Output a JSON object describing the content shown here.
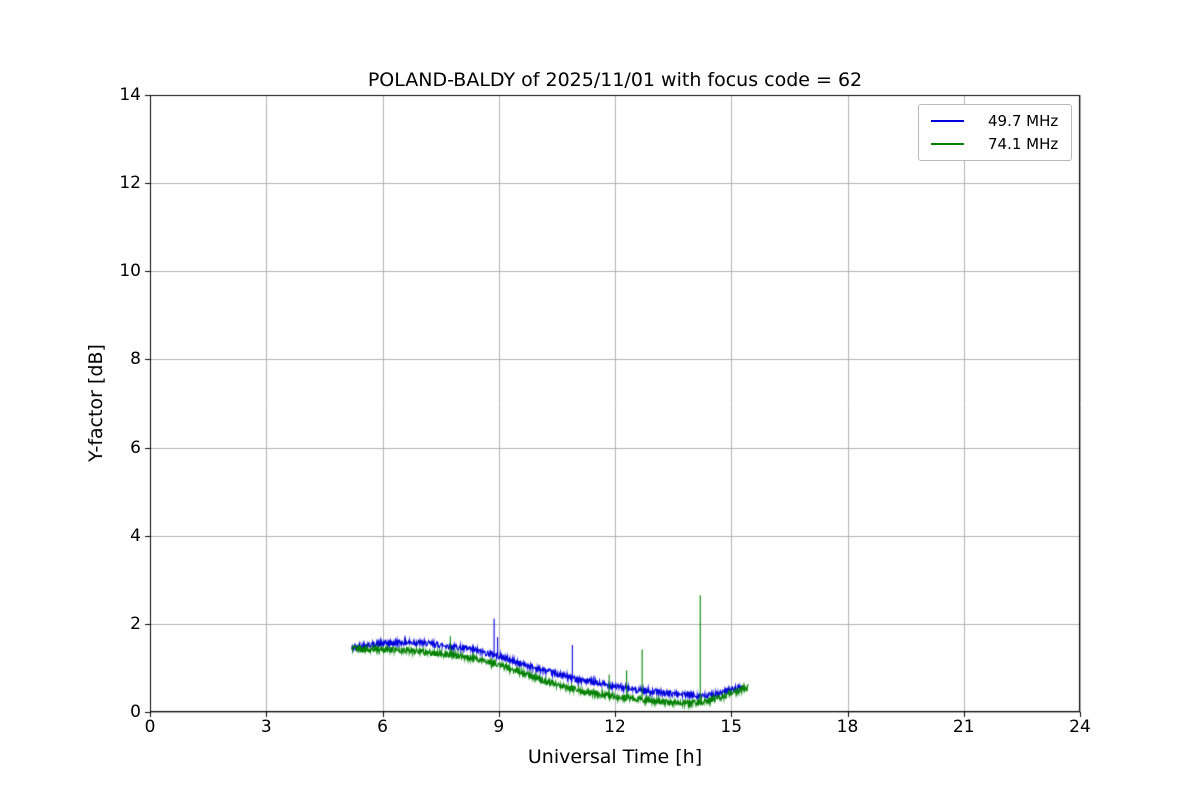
{
  "figure": {
    "background": "#ffffff"
  },
  "chart_data": {
    "type": "line",
    "title": "POLAND-BALDY of 2025/11/01 with focus code = 62",
    "xlabel": "Universal Time [h]",
    "ylabel": "Y-factor [dB]",
    "xlim": [
      0,
      24
    ],
    "ylim": [
      0,
      14
    ],
    "xticks": [
      0,
      3,
      6,
      9,
      12,
      15,
      18,
      21,
      24
    ],
    "yticks": [
      0,
      2,
      4,
      6,
      8,
      10,
      12,
      14
    ],
    "grid": true,
    "grid_color": "#b0b0b0",
    "legend_position": "upper right",
    "series": [
      {
        "name": "49.7 MHz",
        "color": "#0000dd",
        "noise": 0.07,
        "anchors": [
          [
            5.2,
            1.45
          ],
          [
            5.6,
            1.52
          ],
          [
            6.0,
            1.55
          ],
          [
            6.5,
            1.58
          ],
          [
            7.0,
            1.57
          ],
          [
            7.5,
            1.52
          ],
          [
            8.0,
            1.46
          ],
          [
            8.5,
            1.38
          ],
          [
            9.0,
            1.27
          ],
          [
            9.5,
            1.12
          ],
          [
            10.0,
            0.98
          ],
          [
            10.5,
            0.86
          ],
          [
            11.0,
            0.75
          ],
          [
            11.5,
            0.66
          ],
          [
            12.0,
            0.58
          ],
          [
            12.5,
            0.51
          ],
          [
            13.0,
            0.46
          ],
          [
            13.5,
            0.42
          ],
          [
            14.0,
            0.38
          ],
          [
            14.35,
            0.36
          ],
          [
            14.7,
            0.42
          ],
          [
            15.0,
            0.5
          ],
          [
            15.3,
            0.58
          ]
        ],
        "spikes": [
          [
            8.88,
            2.12
          ],
          [
            8.97,
            1.7
          ],
          [
            10.9,
            1.52
          ]
        ]
      },
      {
        "name": "74.1 MHz",
        "color": "#008000",
        "noise": 0.07,
        "anchors": [
          [
            5.2,
            1.45
          ],
          [
            5.5,
            1.42
          ],
          [
            6.0,
            1.42
          ],
          [
            6.5,
            1.4
          ],
          [
            7.0,
            1.37
          ],
          [
            7.5,
            1.32
          ],
          [
            8.0,
            1.27
          ],
          [
            8.5,
            1.19
          ],
          [
            9.0,
            1.07
          ],
          [
            9.5,
            0.92
          ],
          [
            10.0,
            0.76
          ],
          [
            10.5,
            0.62
          ],
          [
            11.0,
            0.51
          ],
          [
            11.5,
            0.42
          ],
          [
            12.0,
            0.35
          ],
          [
            12.5,
            0.3
          ],
          [
            13.0,
            0.25
          ],
          [
            13.5,
            0.21
          ],
          [
            14.0,
            0.2
          ],
          [
            14.4,
            0.25
          ],
          [
            14.8,
            0.36
          ],
          [
            15.1,
            0.46
          ],
          [
            15.45,
            0.56
          ]
        ],
        "spikes": [
          [
            7.75,
            1.72
          ],
          [
            11.85,
            0.85
          ],
          [
            12.3,
            0.95
          ],
          [
            12.7,
            1.42
          ],
          [
            14.2,
            2.65
          ]
        ]
      }
    ]
  }
}
